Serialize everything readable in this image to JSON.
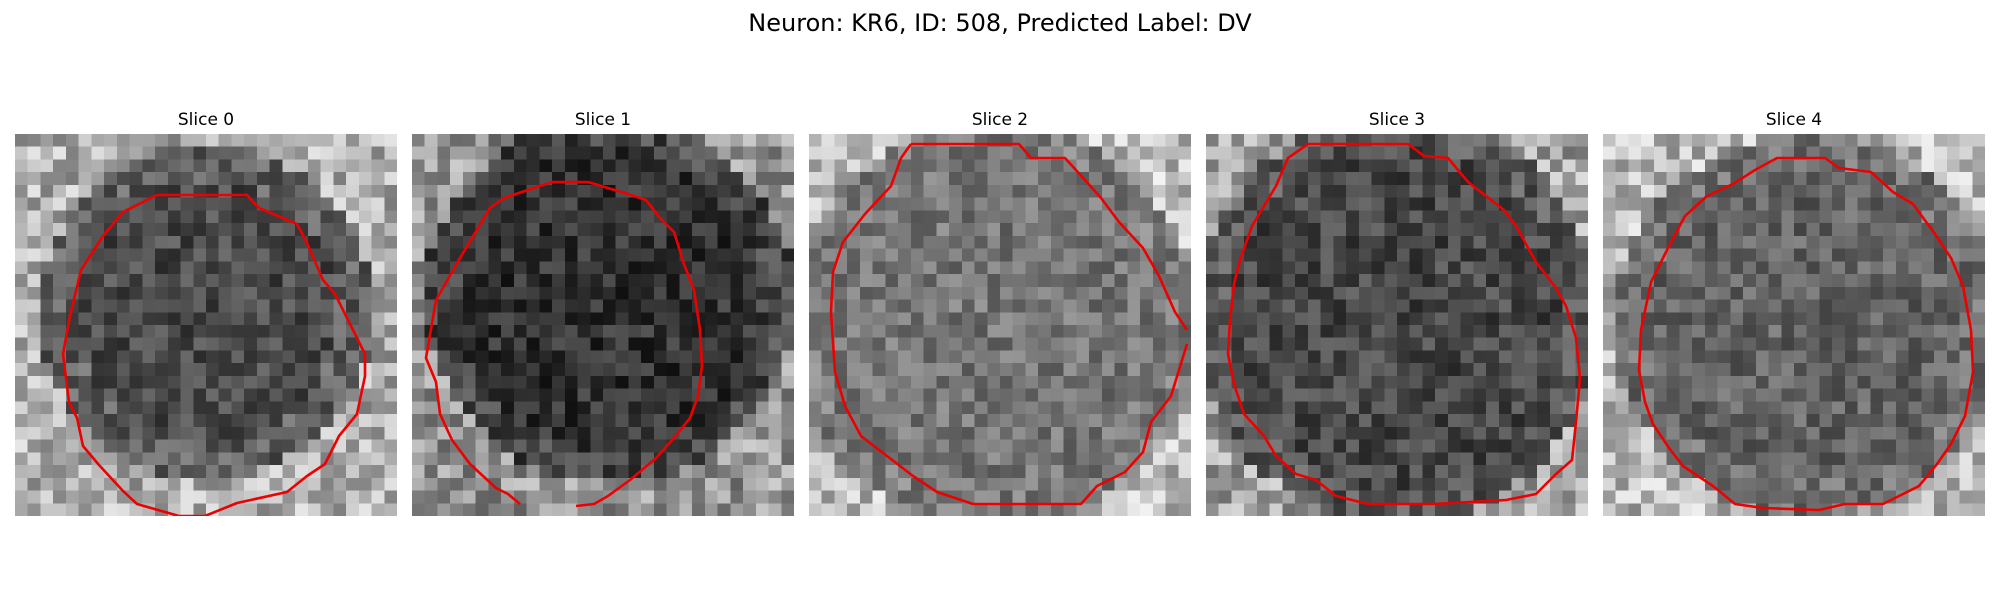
{
  "figure": {
    "title": "Neuron: KR6, ID: 508, Predicted Label: DV"
  },
  "colors": {
    "contour": "#ee0000",
    "background": "#ffffff"
  },
  "slices": [
    {
      "label": "Slice 0"
    },
    {
      "label": "Slice 1"
    },
    {
      "label": "Slice 2"
    },
    {
      "label": "Slice 3"
    },
    {
      "label": "Slice 4"
    }
  ]
}
